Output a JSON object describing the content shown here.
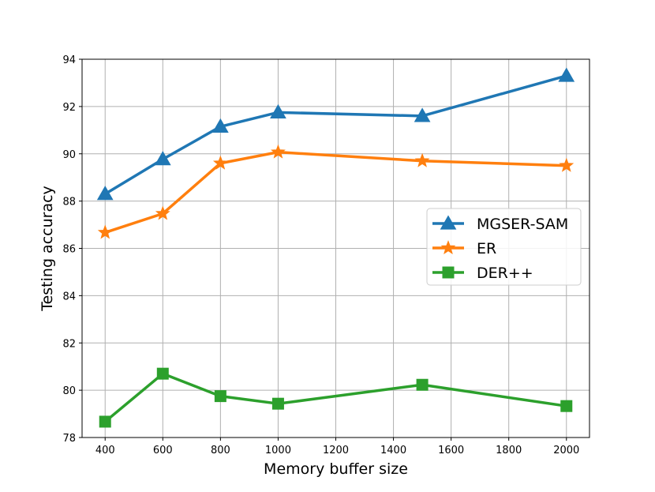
{
  "chart_data": {
    "type": "line",
    "title": "",
    "xlabel": "Memory buffer size",
    "ylabel": "Testing accuracy",
    "xlim": [
      320,
      2080
    ],
    "ylim": [
      78,
      94
    ],
    "xticks": [
      400,
      600,
      800,
      1000,
      1200,
      1400,
      1600,
      1800,
      2000
    ],
    "yticks": [
      78,
      80,
      82,
      84,
      86,
      88,
      90,
      92,
      94
    ],
    "grid": true,
    "legend_position": "center-right",
    "x": [
      400,
      600,
      800,
      1000,
      1500,
      2000
    ],
    "series": [
      {
        "name": "MGSER-SAM",
        "color": "#1f77b4",
        "marker": "triangle",
        "values": [
          88.3,
          89.77,
          91.15,
          91.75,
          91.6,
          93.3
        ]
      },
      {
        "name": "ER",
        "color": "#ff7f0e",
        "marker": "star",
        "values": [
          86.67,
          87.47,
          89.6,
          90.07,
          89.7,
          89.5
        ]
      },
      {
        "name": "DER++",
        "color": "#2ca02c",
        "marker": "square",
        "values": [
          78.67,
          80.7,
          79.75,
          79.43,
          80.23,
          79.33
        ]
      }
    ]
  }
}
